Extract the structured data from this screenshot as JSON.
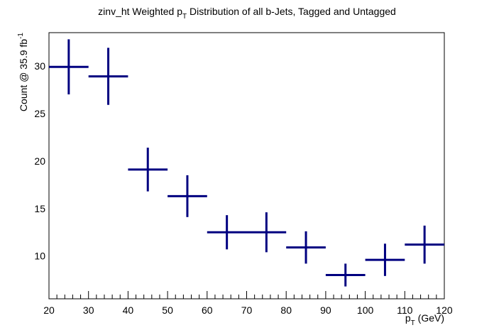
{
  "chart_data": {
    "type": "scatter",
    "title": {
      "main": "zinv_ht Weighted p",
      "sub": "T",
      "rest": " Distribution of all b-Jets, Tagged and Untagged"
    },
    "xlabel": {
      "main": "p",
      "sub": "T",
      "rest": " (GeV)"
    },
    "ylabel": {
      "main": "Count @ 35.9 fb",
      "sup": "-1"
    },
    "xlim": [
      20,
      120
    ],
    "ylim": [
      5.5,
      33.5
    ],
    "x_ticks": [
      20,
      30,
      40,
      50,
      60,
      70,
      80,
      90,
      100,
      110,
      120
    ],
    "y_ticks": [
      10,
      15,
      20,
      25,
      30
    ],
    "grid": false,
    "series": [
      {
        "color": "#000080",
        "points": [
          {
            "x": 25,
            "xerr": 5,
            "y": 29.9,
            "yerr": 2.9
          },
          {
            "x": 35,
            "xerr": 5,
            "y": 28.9,
            "yerr": 3.0
          },
          {
            "x": 45,
            "xerr": 5,
            "y": 19.1,
            "yerr": 2.3
          },
          {
            "x": 55,
            "xerr": 5,
            "y": 16.3,
            "yerr": 2.2
          },
          {
            "x": 65,
            "xerr": 5,
            "y": 12.5,
            "yerr": 1.8
          },
          {
            "x": 75,
            "xerr": 5,
            "y": 12.5,
            "yerr": 2.1
          },
          {
            "x": 85,
            "xerr": 5,
            "y": 10.9,
            "yerr": 1.7
          },
          {
            "x": 95,
            "xerr": 5,
            "y": 8.0,
            "yerr": 1.2
          },
          {
            "x": 105,
            "xerr": 5,
            "y": 9.6,
            "yerr": 1.7
          },
          {
            "x": 115,
            "xerr": 5,
            "y": 11.2,
            "yerr": 2.0
          }
        ]
      }
    ]
  }
}
